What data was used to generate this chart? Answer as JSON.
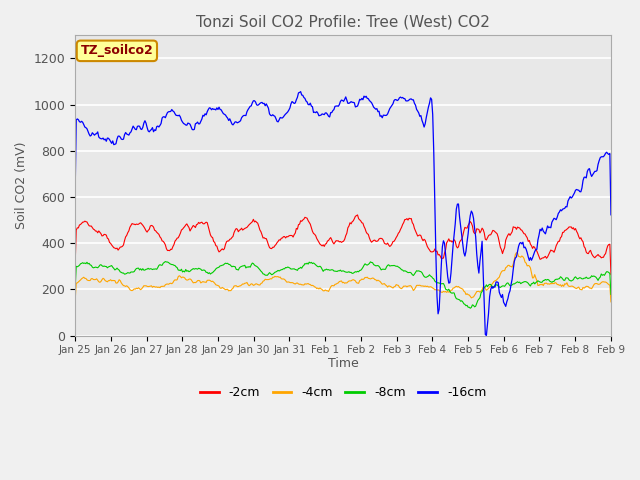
{
  "title": "Tonzi Soil CO2 Profile: Tree (West) CO2",
  "ylabel": "Soil CO2 (mV)",
  "xlabel": "Time",
  "legend_label": "TZ_soilco2",
  "series_labels": [
    "-2cm",
    "-4cm",
    "-8cm",
    "-16cm"
  ],
  "series_colors": [
    "#ff0000",
    "#ffa500",
    "#00cc00",
    "#0000ff"
  ],
  "ylim": [
    0,
    1300
  ],
  "yticks": [
    0,
    200,
    400,
    600,
    800,
    1000,
    1200
  ],
  "x_tick_labels": [
    "Jan 25",
    "Jan 26",
    "Jan 27",
    "Jan 28",
    "Jan 29",
    "Jan 30",
    "Jan 31",
    "Feb 1",
    "Feb 2",
    "Feb 3",
    "Feb 4",
    "Feb 5",
    "Feb 6",
    "Feb 7",
    "Feb 8",
    "Feb 9"
  ],
  "n_points": 500,
  "background_color": "#e8e8e8",
  "grid_color": "#ffffff",
  "title_color": "#555555",
  "fig_width": 6.4,
  "fig_height": 4.8,
  "dpi": 100
}
